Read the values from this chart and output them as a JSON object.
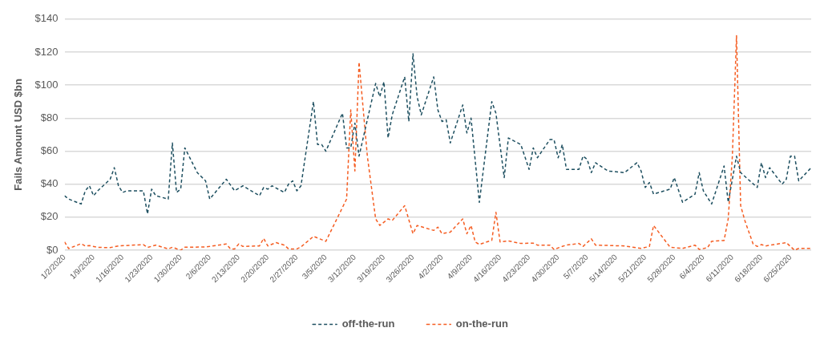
{
  "chart_data": {
    "type": "line",
    "ylabel": "Fails Amount USD $bn",
    "xlim": [
      "2020-01-02",
      "2020-06-30"
    ],
    "xticks": [
      {
        "value": "2020-01-02",
        "label": "1/2/2020"
      },
      {
        "value": "2020-01-09",
        "label": "1/9/2020"
      },
      {
        "value": "2020-01-16",
        "label": "1/16/2020"
      },
      {
        "value": "2020-01-23",
        "label": "1/23/2020"
      },
      {
        "value": "2020-01-30",
        "label": "1/30/2020"
      },
      {
        "value": "2020-02-06",
        "label": "2/6/2020"
      },
      {
        "value": "2020-02-13",
        "label": "2/13/2020"
      },
      {
        "value": "2020-02-20",
        "label": "2/20/2020"
      },
      {
        "value": "2020-02-27",
        "label": "2/27/2020"
      },
      {
        "value": "2020-03-05",
        "label": "3/5/2020"
      },
      {
        "value": "2020-03-12",
        "label": "3/12/2020"
      },
      {
        "value": "2020-03-19",
        "label": "3/19/2020"
      },
      {
        "value": "2020-03-26",
        "label": "3/26/2020"
      },
      {
        "value": "2020-04-02",
        "label": "4/2/2020"
      },
      {
        "value": "2020-04-09",
        "label": "4/9/2020"
      },
      {
        "value": "2020-04-16",
        "label": "4/16/2020"
      },
      {
        "value": "2020-04-23",
        "label": "4/23/2020"
      },
      {
        "value": "2020-04-30",
        "label": "4/30/2020"
      },
      {
        "value": "2020-05-07",
        "label": "5/7/2020"
      },
      {
        "value": "2020-05-14",
        "label": "5/14/2020"
      },
      {
        "value": "2020-05-21",
        "label": "5/21/2020"
      },
      {
        "value": "2020-05-28",
        "label": "5/28/2020"
      },
      {
        "value": "2020-06-04",
        "label": "6/4/2020"
      },
      {
        "value": "2020-06-11",
        "label": "6/11/2020"
      },
      {
        "value": "2020-06-18",
        "label": "6/18/2020"
      },
      {
        "value": "2020-06-25",
        "label": "6/25/2020"
      }
    ],
    "ylim": [
      0,
      140
    ],
    "yticks": [
      {
        "value": 0,
        "label": "$0"
      },
      {
        "value": 20,
        "label": "$20"
      },
      {
        "value": 40,
        "label": "$40"
      },
      {
        "value": 60,
        "label": "$60"
      },
      {
        "value": 80,
        "label": "$80"
      },
      {
        "value": 100,
        "label": "$100"
      },
      {
        "value": 120,
        "label": "$120"
      },
      {
        "value": 140,
        "label": "$140"
      }
    ],
    "grid": "y",
    "legend": "bottom",
    "marker": "none",
    "line_style": "dashed",
    "series": [
      {
        "name": "off-the-run",
        "color": "#1d4f60",
        "x": [
          "2020-01-02",
          "2020-01-03",
          "2020-01-06",
          "2020-01-07",
          "2020-01-08",
          "2020-01-09",
          "2020-01-10",
          "2020-01-13",
          "2020-01-14",
          "2020-01-15",
          "2020-01-16",
          "2020-01-17",
          "2020-01-21",
          "2020-01-22",
          "2020-01-23",
          "2020-01-24",
          "2020-01-27",
          "2020-01-28",
          "2020-01-29",
          "2020-01-30",
          "2020-01-31",
          "2020-02-03",
          "2020-02-05",
          "2020-02-06",
          "2020-02-10",
          "2020-02-12",
          "2020-02-14",
          "2020-02-18",
          "2020-02-19",
          "2020-02-20",
          "2020-02-21",
          "2020-02-24",
          "2020-02-25",
          "2020-02-26",
          "2020-02-27",
          "2020-02-28",
          "2020-03-02",
          "2020-03-03",
          "2020-03-04",
          "2020-03-05",
          "2020-03-09",
          "2020-03-10",
          "2020-03-11",
          "2020-03-12",
          "2020-03-13",
          "2020-03-17",
          "2020-03-18",
          "2020-03-19",
          "2020-03-20",
          "2020-03-21",
          "2020-03-24",
          "2020-03-25",
          "2020-03-26",
          "2020-03-27",
          "2020-03-28",
          "2020-03-31",
          "2020-04-01",
          "2020-04-02",
          "2020-04-03",
          "2020-04-04",
          "2020-04-07",
          "2020-04-08",
          "2020-04-09",
          "2020-04-11",
          "2020-04-14",
          "2020-04-15",
          "2020-04-17",
          "2020-04-18",
          "2020-04-21",
          "2020-04-23",
          "2020-04-24",
          "2020-04-25",
          "2020-04-28",
          "2020-04-29",
          "2020-04-30",
          "2020-05-01",
          "2020-05-02",
          "2020-05-05",
          "2020-05-06",
          "2020-05-07",
          "2020-05-08",
          "2020-05-09",
          "2020-05-12",
          "2020-05-16",
          "2020-05-19",
          "2020-05-20",
          "2020-05-21",
          "2020-05-22",
          "2020-05-23",
          "2020-05-27",
          "2020-05-28",
          "2020-05-30",
          "2020-06-02",
          "2020-06-03",
          "2020-06-04",
          "2020-06-06",
          "2020-06-09",
          "2020-06-10",
          "2020-06-12",
          "2020-06-13",
          "2020-06-17",
          "2020-06-18",
          "2020-06-19",
          "2020-06-20",
          "2020-06-23",
          "2020-06-24",
          "2020-06-25",
          "2020-06-26",
          "2020-06-27",
          "2020-06-30"
        ],
        "values": [
          33,
          31,
          28,
          36,
          39,
          33,
          36,
          43,
          50,
          39,
          35,
          36,
          36,
          22,
          37,
          33,
          31,
          65,
          35,
          37,
          62,
          47,
          42,
          31,
          43,
          36,
          39,
          33,
          38,
          37,
          39,
          35,
          40,
          42,
          36,
          39,
          90,
          64,
          64,
          60,
          83,
          62,
          62,
          77,
          57,
          101,
          93,
          102,
          68,
          82,
          105,
          78,
          119,
          93,
          82,
          105,
          85,
          78,
          79,
          65,
          88,
          71,
          80,
          29,
          90,
          83,
          44,
          68,
          64,
          49,
          62,
          56,
          67,
          67,
          56,
          64,
          49,
          49,
          57,
          55,
          47,
          53,
          48,
          47,
          53,
          48,
          38,
          41,
          34,
          37,
          44,
          29,
          34,
          47,
          36,
          28,
          51,
          29,
          57,
          47,
          38,
          53,
          44,
          50,
          40,
          43,
          57,
          57,
          42,
          50
        ]
      },
      {
        "name": "on-the-run",
        "color": "#f55d22",
        "x": [
          "2020-01-02",
          "2020-01-03",
          "2020-01-06",
          "2020-01-07",
          "2020-01-08",
          "2020-01-10",
          "2020-01-13",
          "2020-01-15",
          "2020-01-21",
          "2020-01-22",
          "2020-01-24",
          "2020-01-27",
          "2020-01-28",
          "2020-01-30",
          "2020-01-31",
          "2020-02-05",
          "2020-02-06",
          "2020-02-10",
          "2020-02-11",
          "2020-02-12",
          "2020-02-13",
          "2020-02-14",
          "2020-02-18",
          "2020-02-19",
          "2020-02-20",
          "2020-02-22",
          "2020-02-24",
          "2020-02-25",
          "2020-02-27",
          "2020-02-28",
          "2020-03-02",
          "2020-03-05",
          "2020-03-10",
          "2020-03-11",
          "2020-03-12",
          "2020-03-13",
          "2020-03-15",
          "2020-03-17",
          "2020-03-18",
          "2020-03-20",
          "2020-03-21",
          "2020-03-24",
          "2020-03-26",
          "2020-03-27",
          "2020-03-31",
          "2020-04-01",
          "2020-04-02",
          "2020-04-04",
          "2020-04-07",
          "2020-04-08",
          "2020-04-09",
          "2020-04-10",
          "2020-04-11",
          "2020-04-14",
          "2020-04-15",
          "2020-04-16",
          "2020-04-18",
          "2020-04-21",
          "2020-04-24",
          "2020-04-25",
          "2020-04-28",
          "2020-04-29",
          "2020-05-01",
          "2020-05-02",
          "2020-05-05",
          "2020-05-06",
          "2020-05-08",
          "2020-05-09",
          "2020-05-16",
          "2020-05-20",
          "2020-05-22",
          "2020-05-23",
          "2020-05-27",
          "2020-05-30",
          "2020-06-02",
          "2020-06-03",
          "2020-06-05",
          "2020-06-06",
          "2020-06-09",
          "2020-06-10",
          "2020-06-11",
          "2020-06-12",
          "2020-06-13",
          "2020-06-14",
          "2020-06-16",
          "2020-06-17",
          "2020-06-18",
          "2020-06-19",
          "2020-06-24",
          "2020-06-26",
          "2020-06-27",
          "2020-06-30"
        ],
        "values": [
          5,
          1,
          4,
          2.6,
          2.8,
          1.7,
          1.6,
          2.6,
          3.4,
          1.7,
          3.1,
          0.8,
          1.8,
          0,
          1.8,
          2,
          2.3,
          3.8,
          0.8,
          0.8,
          3.8,
          2.3,
          2.6,
          7.2,
          2.6,
          4.6,
          3.1,
          0.8,
          0.8,
          2,
          8.4,
          5.4,
          31,
          85,
          48,
          114,
          57,
          19,
          15,
          19,
          18,
          27,
          10,
          15,
          12,
          14,
          10,
          11,
          19,
          10,
          15,
          5,
          3.5,
          6,
          23,
          5,
          5.6,
          4.1,
          4.3,
          3.1,
          3.1,
          0.5,
          2.3,
          3.1,
          4.1,
          2.3,
          6.9,
          3.1,
          2.6,
          1.1,
          2.3,
          15,
          1.8,
          1.1,
          3.1,
          0.5,
          1.5,
          5.4,
          5.9,
          19,
          57,
          130,
          27,
          18,
          3.8,
          2.3,
          3.4,
          2.6,
          4.6,
          0,
          1.1,
          1.1
        ]
      }
    ]
  }
}
